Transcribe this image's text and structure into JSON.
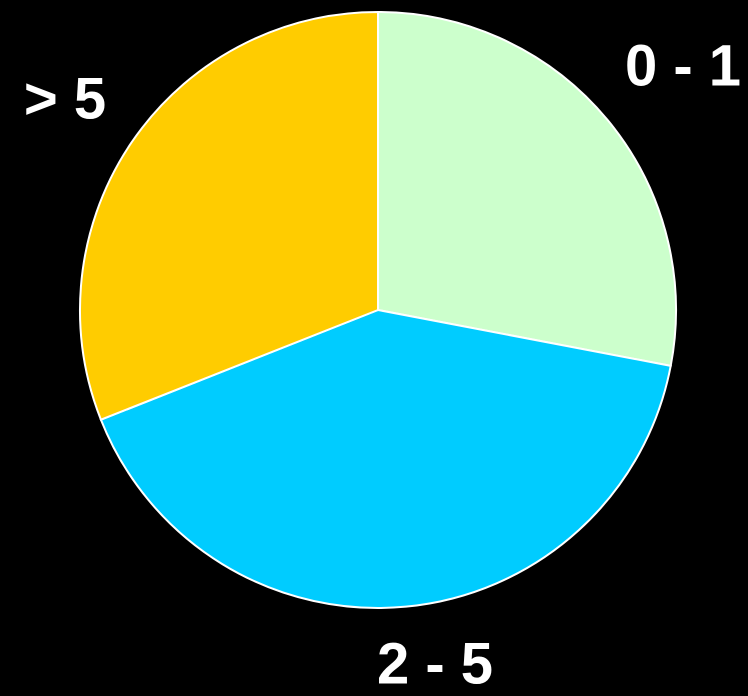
{
  "chart_data": {
    "type": "pie",
    "categories": [
      "0 - 1",
      "2 - 5",
      "> 5"
    ],
    "values": [
      28,
      41,
      31
    ],
    "colors": [
      "#ccffcc",
      "#00ccff",
      "#ffcc00"
    ]
  }
}
